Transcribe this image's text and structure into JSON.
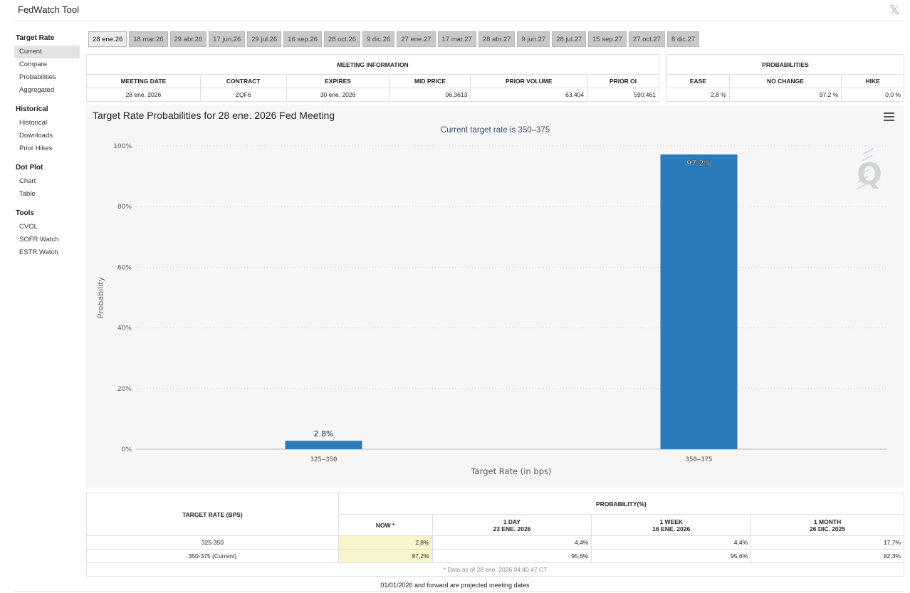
{
  "app": {
    "title": "FedWatch Tool",
    "close_glyph": "𝕏"
  },
  "sidebar": {
    "sections": [
      {
        "heading": "Target Rate",
        "items": [
          "Current",
          "Compare",
          "Probabilities",
          "Aggregated"
        ]
      },
      {
        "heading": "Historical",
        "items": [
          "Historical",
          "Downloads",
          "Prior Hikes"
        ]
      },
      {
        "heading": "Dot Plot",
        "items": [
          "Chart",
          "Table"
        ]
      },
      {
        "heading": "Tools",
        "items": [
          "CVOL",
          "SOFR Watch",
          "ESTR Watch"
        ]
      }
    ],
    "active_item": "Current"
  },
  "tabs": {
    "items": [
      "28 ene.26",
      "18 mar.26",
      "29 abr.26",
      "17 jun.26",
      "29 jul.26",
      "16 sep.26",
      "28 oct.26",
      "9 dic.26",
      "27 ene.27",
      "17 mar.27",
      "28 abr.27",
      "9 jun.27",
      "28 jul.27",
      "15 sep.27",
      "27 oct.27",
      "8 dic.27"
    ],
    "active_index": 0
  },
  "meeting_info": {
    "heading": "MEETING INFORMATION",
    "columns": [
      "MEETING DATE",
      "CONTRACT",
      "EXPIRES",
      "MID PRICE",
      "PRIOR VOLUME",
      "PRIOR OI"
    ],
    "row": [
      "28 ene. 2026",
      "ZQF6",
      "30 ene. 2026",
      "96,3613",
      "63.404",
      "590.461"
    ]
  },
  "probabilities": {
    "heading": "PROBABILITIES",
    "columns": [
      "EASE",
      "NO CHANGE",
      "HIKE"
    ],
    "row": [
      "2,8 %",
      "97,2 %",
      "0,0 %"
    ]
  },
  "chart": {
    "title": "Target Rate Probabilities for 28 ene. 2026 Fed Meeting",
    "subtitle": "Current target rate is 350–375",
    "bar_color": "#2b7bba",
    "watermark": "Q"
  },
  "chart_data": {
    "type": "bar",
    "categories": [
      "325–350",
      "350–375"
    ],
    "values": [
      2.8,
      97.2
    ],
    "data_labels": [
      "2.8%",
      "97.2%"
    ],
    "title": "Target Rate Probabilities for 28 ene. 2026 Fed Meeting",
    "subtitle": "Current target rate is 350–375",
    "xlabel": "Target Rate (in bps)",
    "ylabel": "Probability",
    "ylim": [
      0,
      100
    ],
    "yticks": [
      "0%",
      "20%",
      "40%",
      "60%",
      "80%",
      "100%"
    ],
    "grid": true
  },
  "bottom_table": {
    "col_target": "TARGET RATE (BPS)",
    "col_prob": "PROBABILITY(%)",
    "sub_cols": [
      {
        "label": "NOW *",
        "date": ""
      },
      {
        "label": "1 DAY",
        "date": "23 ENE. 2026"
      },
      {
        "label": "1 WEEK",
        "date": "16 ENE. 2026"
      },
      {
        "label": "1 MONTH",
        "date": "26 DIC. 2025"
      }
    ],
    "rows": [
      {
        "rate": "325-350",
        "values": [
          "2,8%",
          "4,4%",
          "4,4%",
          "17,7%"
        ]
      },
      {
        "rate": "350-375 (Current)",
        "values": [
          "97,2%",
          "95,6%",
          "95,6%",
          "82,3%"
        ]
      }
    ],
    "footnote": "* Data as of 28 ene. 2026 04:40:47 CT"
  },
  "bottom_note": "01/01/2026 and forward are projected meeting dates"
}
